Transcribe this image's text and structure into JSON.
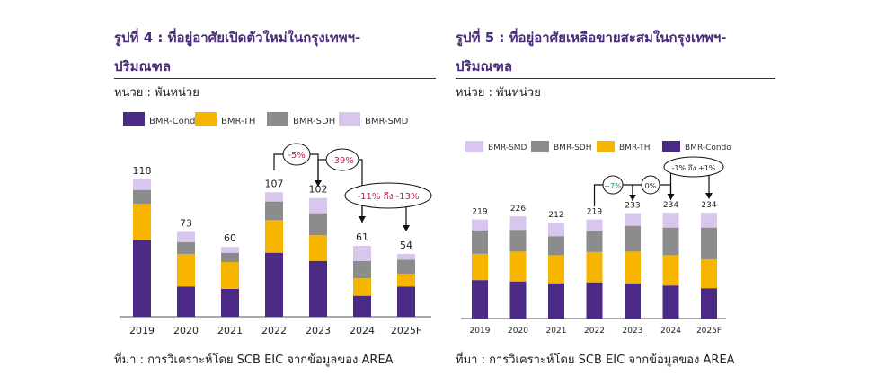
{
  "charts": [
    {
      "title_line1": "รูปที่ 4 : ที่อยู่อาศัยเปิดตัวใหม่ในกรุงเทพฯ-",
      "title_line2": "ปริมณฑล",
      "unit": "หน่วย : พันหน่วย",
      "source": "ที่มา : การวิเคราะห์โดย SCB EIC จากข้อมูลของ AREA",
      "chart_data": {
        "type": "bar",
        "stacked": true,
        "categories": [
          "2019",
          "2020",
          "2021",
          "2022",
          "2023",
          "2024",
          "2025F"
        ],
        "totals": [
          118,
          73,
          60,
          107,
          102,
          61,
          54
        ],
        "series": [
          {
            "name": "BMR-Condo",
            "color": "#4b2a85",
            "values": [
              66,
              26,
              24,
              55,
              48,
              18,
              26
            ]
          },
          {
            "name": "BMR-TH",
            "color": "#f7b500",
            "values": [
              31,
              28,
              23,
              28,
              22,
              15,
              11
            ]
          },
          {
            "name": "BMR-SDH",
            "color": "#8c8c8c",
            "values": [
              12,
              10,
              8,
              16,
              19,
              15,
              12
            ]
          },
          {
            "name": "BMR-SMD",
            "color": "#d8c6ee",
            "values": [
              9,
              9,
              5,
              8,
              13,
              13,
              5
            ]
          }
        ],
        "legend_position": "top",
        "annotations": [
          {
            "text": "-5%",
            "from": "2022",
            "to": "2023"
          },
          {
            "text": "-39%",
            "from": "2023",
            "to": "2024"
          },
          {
            "text": "-11% ถึง -13%",
            "from": "2024",
            "to": "2025F"
          }
        ],
        "grid": false
      }
    },
    {
      "title_line1": "รูปที่ 5 : ที่อยู่อาศัยเหลือขายสะสมในกรุงเทพฯ-",
      "title_line2": "ปริมณฑล",
      "unit": "หน่วย : พันหน่วย",
      "source": "ที่มา : การวิเคราะห์โดย SCB EIC จากข้อมูลของ AREA",
      "chart_data": {
        "type": "bar",
        "stacked": true,
        "categories": [
          "2019",
          "2020",
          "2021",
          "2022",
          "2023",
          "2024",
          "2025F"
        ],
        "totals": [
          219,
          226,
          212,
          219,
          233,
          234,
          234
        ],
        "series": [
          {
            "name": "BMR-Condo",
            "color": "#4b2a85",
            "values": [
              85,
              82,
              78,
              80,
              78,
              73,
              67
            ]
          },
          {
            "name": "BMR-TH",
            "color": "#f7b500",
            "values": [
              58,
              66,
              62,
              67,
              70,
              67,
              64
            ]
          },
          {
            "name": "BMR-SDH",
            "color": "#8c8c8c",
            "values": [
              52,
              48,
              42,
              46,
              57,
              61,
              70
            ]
          },
          {
            "name": "BMR-SMD",
            "color": "#d8c6ee",
            "values": [
              24,
              30,
              30,
              26,
              28,
              33,
              33
            ]
          }
        ],
        "legend_order": [
          "BMR-SMD",
          "BMR-SDH",
          "BMR-TH",
          "BMR-Condo"
        ],
        "legend_position": "top",
        "annotations": [
          {
            "text": "+7%",
            "from": "2022",
            "to": "2023"
          },
          {
            "text": "0%",
            "from": "2023",
            "to": "2024"
          },
          {
            "text": "-1% ถึง +1%",
            "from": "2024",
            "to": "2025F"
          }
        ],
        "grid": false
      }
    }
  ]
}
